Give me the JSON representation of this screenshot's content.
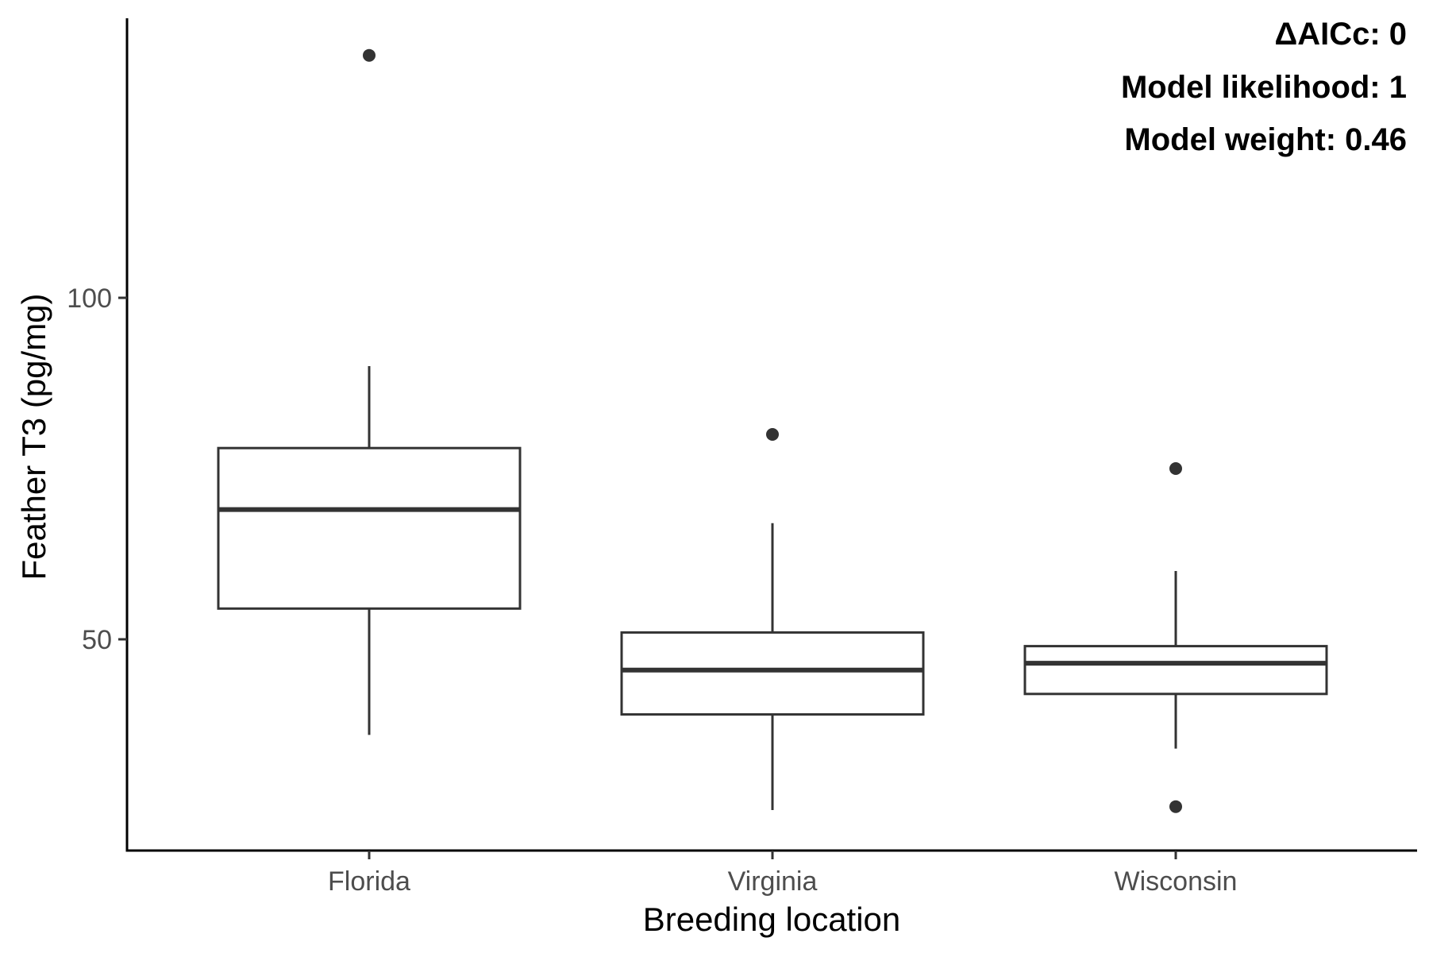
{
  "chart_data": {
    "type": "box",
    "title": "",
    "xlabel": "Breeding location",
    "ylabel": "Feather T3 (pg/mg)",
    "ylim": [
      19,
      140
    ],
    "yticks": [
      50,
      100
    ],
    "grid": false,
    "categories": [
      "Florida",
      "Virginia",
      "Wisconsin"
    ],
    "boxes": [
      {
        "name": "Florida",
        "whisker_low": 36,
        "q1": 54.5,
        "median": 69,
        "q3": 78,
        "whisker_high": 90,
        "outliers": [
          135.5
        ]
      },
      {
        "name": "Virginia",
        "whisker_low": 25,
        "q1": 39,
        "median": 45.5,
        "q3": 51,
        "whisker_high": 67,
        "outliers": [
          80
        ]
      },
      {
        "name": "Wisconsin",
        "whisker_low": 34,
        "q1": 42,
        "median": 46.5,
        "q3": 49,
        "whisker_high": 60,
        "outliers": [
          75,
          25.5
        ]
      }
    ],
    "annotations": [
      "ΔAICc: 0",
      "Model likelihood: 1",
      "Model weight: 0.46"
    ],
    "colors": {
      "box_stroke": "#333333",
      "outlier": "#333333",
      "axis": "#000000"
    }
  }
}
